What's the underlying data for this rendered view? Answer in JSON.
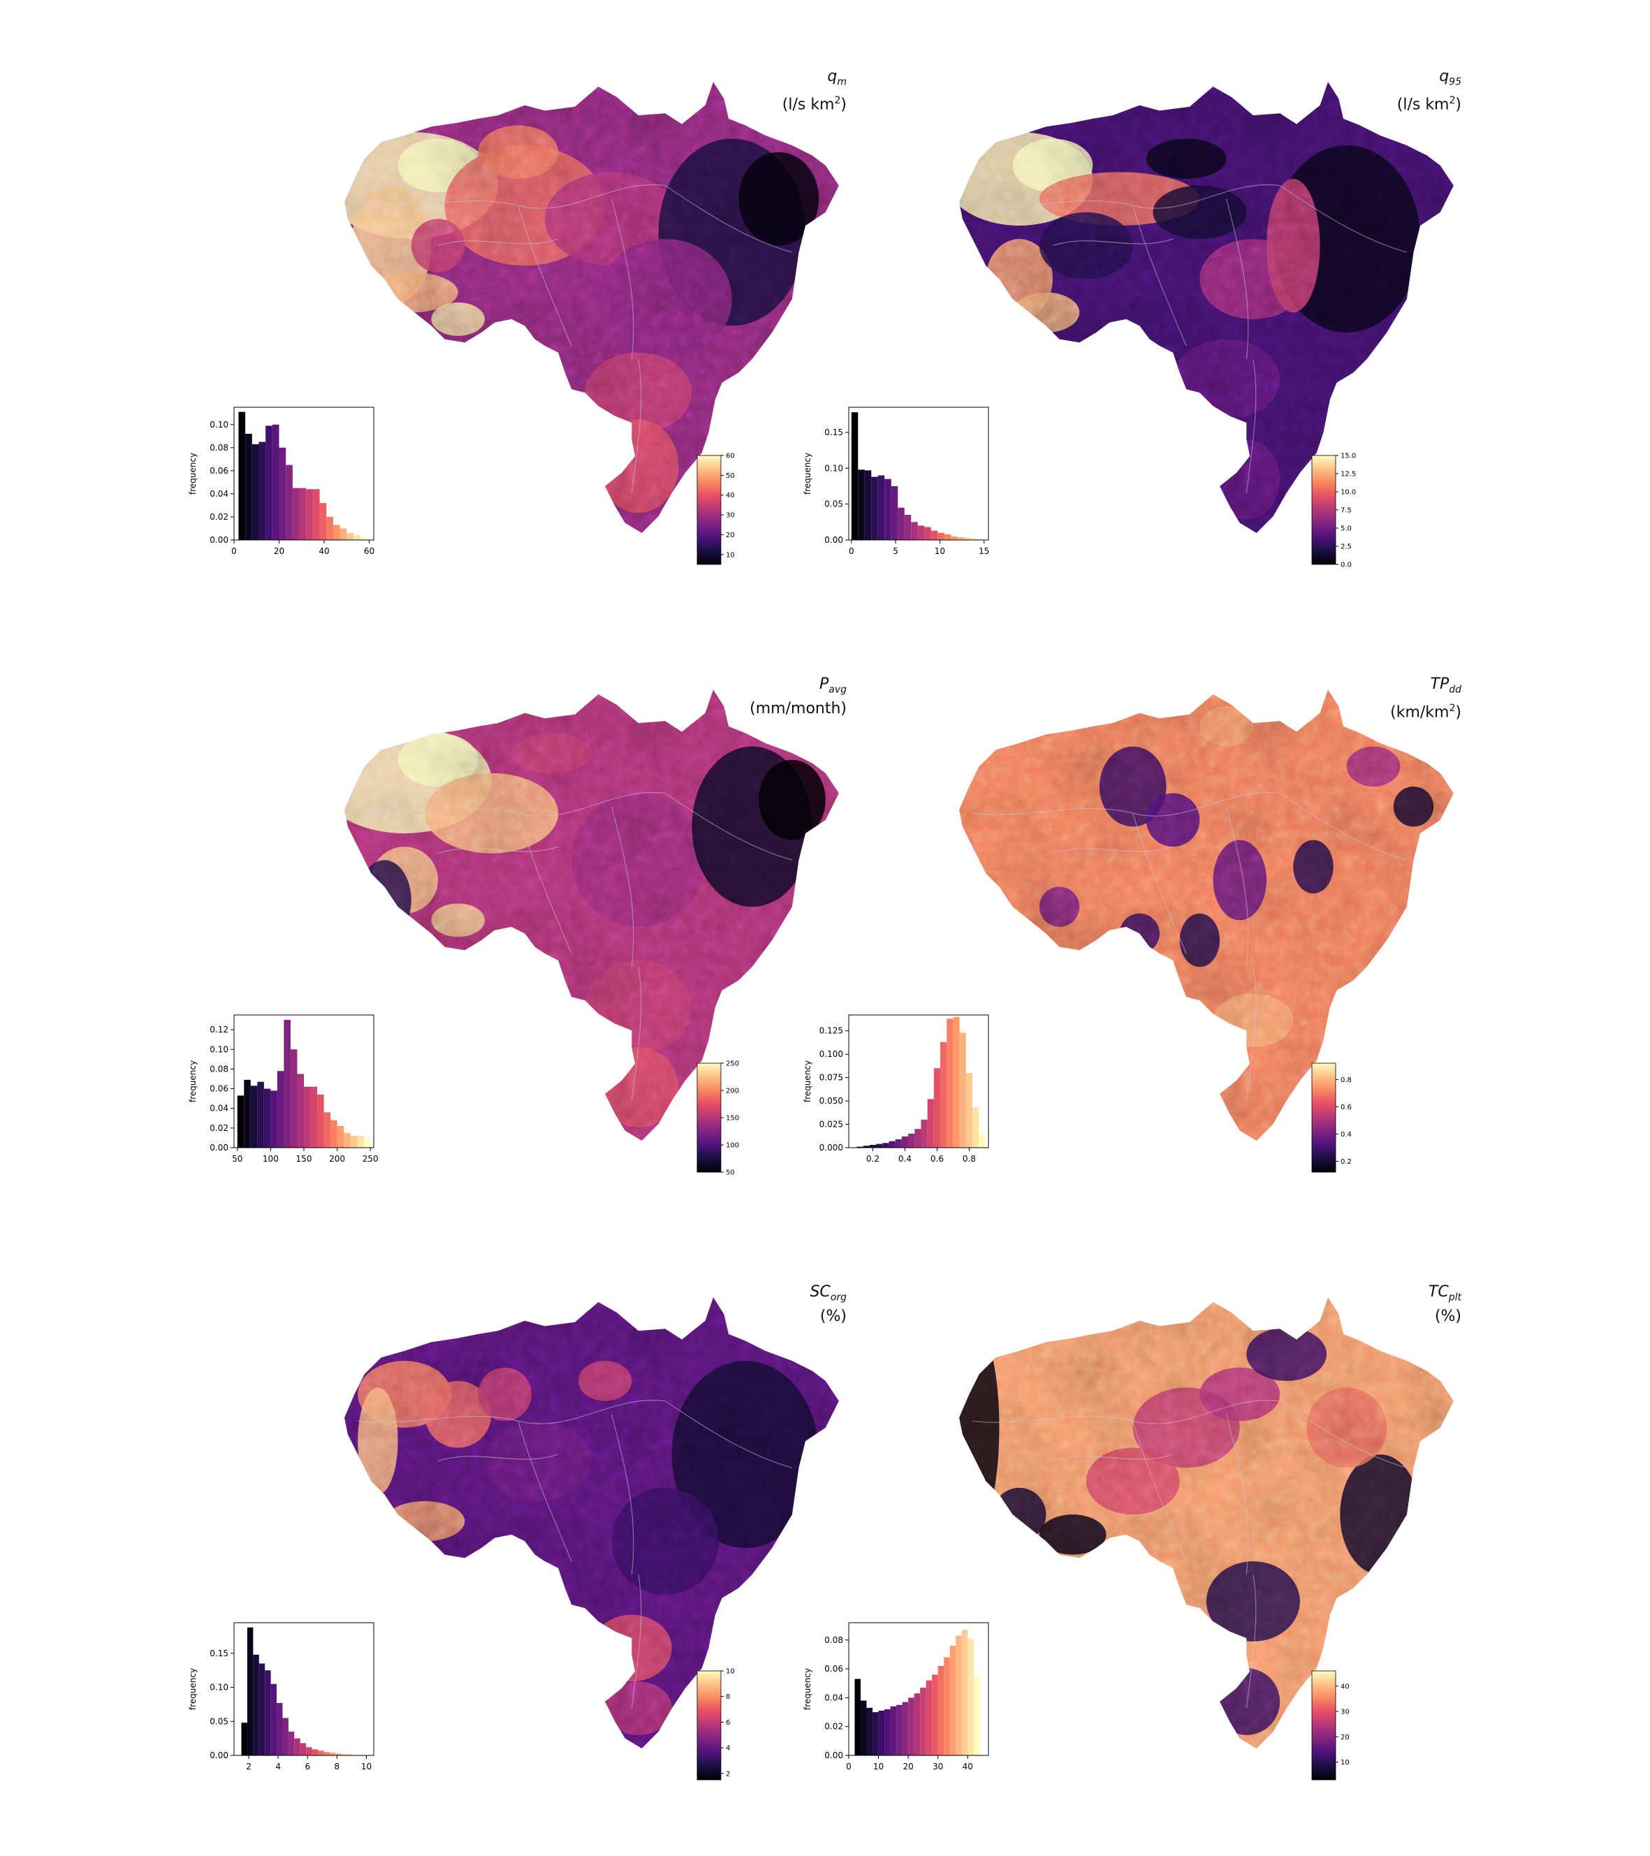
{
  "figure": {
    "panels": [
      {
        "id": "qm",
        "title_symbol": "q",
        "title_sub": "m",
        "title_unit_pre": "(l/s km",
        "title_unit_sup": "2",
        "title_unit_post": ")",
        "cbar_ticks": [
          "60",
          "50",
          "40",
          "30",
          "20",
          "10"
        ],
        "cbar_min": 5,
        "cbar_max": 60,
        "hist": {
          "ylabel": "frequency",
          "xticks": [
            {
              "v": 0,
              "l": "0"
            },
            {
              "v": 20,
              "l": "20"
            },
            {
              "v": 40,
              "l": "40"
            },
            {
              "v": 60,
              "l": "60"
            }
          ],
          "yticks": [
            {
              "v": 0,
              "l": "0.00"
            },
            {
              "v": 0.02,
              "l": "0.02"
            },
            {
              "v": 0.04,
              "l": "0.04"
            },
            {
              "v": 0.06,
              "l": "0.06"
            },
            {
              "v": 0.08,
              "l": "0.08"
            },
            {
              "v": 0.1,
              "l": "0.10"
            }
          ],
          "xlim": [
            0,
            62
          ],
          "ylim": [
            0,
            0.115
          ],
          "bins": [
            [
              2,
              5,
              0.111
            ],
            [
              5,
              8,
              0.092
            ],
            [
              8,
              11,
              0.083
            ],
            [
              11,
              14,
              0.085
            ],
            [
              14,
              17,
              0.099
            ],
            [
              17,
              20,
              0.1
            ],
            [
              20,
              23,
              0.08
            ],
            [
              23,
              26,
              0.065
            ],
            [
              26,
              29,
              0.045
            ],
            [
              29,
              32,
              0.045
            ],
            [
              32,
              35,
              0.044
            ],
            [
              35,
              38,
              0.044
            ],
            [
              38,
              41,
              0.032
            ],
            [
              41,
              44,
              0.02
            ],
            [
              44,
              47,
              0.013
            ],
            [
              47,
              50,
              0.01
            ],
            [
              50,
              53,
              0.006
            ],
            [
              53,
              56,
              0.004
            ],
            [
              56,
              59,
              0.002
            ]
          ]
        },
        "map_texture": "qm"
      },
      {
        "id": "q95",
        "title_symbol": "q",
        "title_sub": "95",
        "title_unit_pre": "(l/s km",
        "title_unit_sup": "2",
        "title_unit_post": ")",
        "cbar_ticks": [
          "15.0",
          "12.5",
          "10.0",
          "7.5",
          "5.0",
          "2.5",
          "0.0"
        ],
        "cbar_min": 0,
        "cbar_max": 15,
        "hist": {
          "ylabel": "frequency",
          "xticks": [
            {
              "v": 0,
              "l": "0"
            },
            {
              "v": 5,
              "l": "5"
            },
            {
              "v": 10,
              "l": "10"
            },
            {
              "v": 15,
              "l": "15"
            }
          ],
          "yticks": [
            {
              "v": 0,
              "l": "0.00"
            },
            {
              "v": 0.05,
              "l": "0.05"
            },
            {
              "v": 0.1,
              "l": "0.10"
            },
            {
              "v": 0.15,
              "l": "0.15"
            }
          ],
          "xlim": [
            -0.3,
            15.5
          ],
          "ylim": [
            0,
            0.185
          ],
          "bins": [
            [
              0,
              0.75,
              0.178
            ],
            [
              0.75,
              1.5,
              0.098
            ],
            [
              1.5,
              2.25,
              0.097
            ],
            [
              2.25,
              3,
              0.088
            ],
            [
              3,
              3.75,
              0.09
            ],
            [
              3.75,
              4.5,
              0.085
            ],
            [
              4.5,
              5.25,
              0.075
            ],
            [
              5.25,
              6,
              0.045
            ],
            [
              6,
              6.75,
              0.035
            ],
            [
              6.75,
              7.5,
              0.025
            ],
            [
              7.5,
              8.25,
              0.02
            ],
            [
              8.25,
              9,
              0.018
            ],
            [
              9,
              9.75,
              0.013
            ],
            [
              9.75,
              10.5,
              0.01
            ],
            [
              10.5,
              11.25,
              0.008
            ],
            [
              11.25,
              12,
              0.005
            ],
            [
              12,
              12.75,
              0.004
            ],
            [
              12.75,
              13.5,
              0.003
            ],
            [
              13.5,
              14.25,
              0.002
            ],
            [
              14.25,
              15,
              0.001
            ]
          ]
        },
        "map_texture": "q95"
      },
      {
        "id": "pavg",
        "title_symbol": "P",
        "title_sub": "avg",
        "title_unit_pre": "(mm/month)",
        "title_unit_sup": "",
        "title_unit_post": "",
        "cbar_ticks": [
          "250",
          "200",
          "150",
          "100",
          "50"
        ],
        "cbar_min": 50,
        "cbar_max": 250,
        "hist": {
          "ylabel": "frequency",
          "xticks": [
            {
              "v": 50,
              "l": "50"
            },
            {
              "v": 100,
              "l": "100"
            },
            {
              "v": 150,
              "l": "150"
            },
            {
              "v": 200,
              "l": "200"
            },
            {
              "v": 250,
              "l": "250"
            }
          ],
          "yticks": [
            {
              "v": 0,
              "l": "0.00"
            },
            {
              "v": 0.02,
              "l": "0.02"
            },
            {
              "v": 0.04,
              "l": "0.04"
            },
            {
              "v": 0.06,
              "l": "0.06"
            },
            {
              "v": 0.08,
              "l": "0.08"
            },
            {
              "v": 0.1,
              "l": "0.10"
            },
            {
              "v": 0.12,
              "l": "0.12"
            }
          ],
          "xlim": [
            45,
            255
          ],
          "ylim": [
            0,
            0.135
          ],
          "bins": [
            [
              50,
              60,
              0.053
            ],
            [
              60,
              70,
              0.069
            ],
            [
              70,
              80,
              0.063
            ],
            [
              80,
              90,
              0.067
            ],
            [
              90,
              100,
              0.06
            ],
            [
              100,
              110,
              0.058
            ],
            [
              110,
              120,
              0.078
            ],
            [
              120,
              130,
              0.13
            ],
            [
              130,
              140,
              0.1
            ],
            [
              140,
              150,
              0.075
            ],
            [
              150,
              160,
              0.062
            ],
            [
              160,
              170,
              0.062
            ],
            [
              170,
              180,
              0.054
            ],
            [
              180,
              190,
              0.036
            ],
            [
              190,
              200,
              0.028
            ],
            [
              200,
              210,
              0.022
            ],
            [
              210,
              220,
              0.015
            ],
            [
              220,
              230,
              0.012
            ],
            [
              230,
              240,
              0.012
            ],
            [
              240,
              250,
              0.01
            ]
          ]
        },
        "map_texture": "pavg"
      },
      {
        "id": "tpdd",
        "title_symbol": "TP",
        "title_sub": "dd",
        "title_unit_pre": "(km/km",
        "title_unit_sup": "2",
        "title_unit_post": ")",
        "cbar_ticks": [
          "0.8",
          "0.6",
          "0.4",
          "0.2"
        ],
        "cbar_min": 0.12,
        "cbar_max": 0.92,
        "hist": {
          "ylabel": "frequency",
          "xticks": [
            {
              "v": 0.2,
              "l": "0.2"
            },
            {
              "v": 0.4,
              "l": "0.4"
            },
            {
              "v": 0.6,
              "l": "0.6"
            },
            {
              "v": 0.8,
              "l": "0.8"
            }
          ],
          "yticks": [
            {
              "v": 0,
              "l": "0.000"
            },
            {
              "v": 0.025,
              "l": "0.025"
            },
            {
              "v": 0.05,
              "l": "0.050"
            },
            {
              "v": 0.075,
              "l": "0.075"
            },
            {
              "v": 0.1,
              "l": "0.100"
            },
            {
              "v": 0.125,
              "l": "0.125"
            }
          ],
          "xlim": [
            0.05,
            0.92
          ],
          "ylim": [
            0,
            0.142
          ],
          "bins": [
            [
              0.1,
              0.14,
              0.001
            ],
            [
              0.14,
              0.18,
              0.002
            ],
            [
              0.18,
              0.22,
              0.003
            ],
            [
              0.22,
              0.26,
              0.004
            ],
            [
              0.26,
              0.3,
              0.005
            ],
            [
              0.3,
              0.34,
              0.007
            ],
            [
              0.34,
              0.38,
              0.009
            ],
            [
              0.38,
              0.42,
              0.012
            ],
            [
              0.42,
              0.46,
              0.015
            ],
            [
              0.46,
              0.5,
              0.02
            ],
            [
              0.5,
              0.54,
              0.03
            ],
            [
              0.54,
              0.58,
              0.052
            ],
            [
              0.58,
              0.62,
              0.085
            ],
            [
              0.62,
              0.66,
              0.113
            ],
            [
              0.66,
              0.7,
              0.138
            ],
            [
              0.7,
              0.74,
              0.14
            ],
            [
              0.74,
              0.78,
              0.123
            ],
            [
              0.78,
              0.82,
              0.08
            ],
            [
              0.82,
              0.86,
              0.043
            ],
            [
              0.86,
              0.9,
              0.015
            ]
          ]
        },
        "map_texture": "tpdd"
      },
      {
        "id": "scorg",
        "title_symbol": "SC",
        "title_sub": "org",
        "title_unit_pre": "(%)",
        "title_unit_sup": "",
        "title_unit_post": "",
        "cbar_ticks": [
          "10",
          "8",
          "6",
          "4",
          "2"
        ],
        "cbar_min": 1.5,
        "cbar_max": 10,
        "hist": {
          "ylabel": "frequency",
          "xticks": [
            {
              "v": 2,
              "l": "2"
            },
            {
              "v": 4,
              "l": "4"
            },
            {
              "v": 6,
              "l": "6"
            },
            {
              "v": 8,
              "l": "8"
            },
            {
              "v": 10,
              "l": "10"
            }
          ],
          "yticks": [
            {
              "v": 0,
              "l": "0.00"
            },
            {
              "v": 0.05,
              "l": "0.05"
            },
            {
              "v": 0.1,
              "l": "0.10"
            },
            {
              "v": 0.15,
              "l": "0.15"
            }
          ],
          "xlim": [
            1.0,
            10.5
          ],
          "ylim": [
            0,
            0.195
          ],
          "bins": [
            [
              1.5,
              1.9,
              0.048
            ],
            [
              1.9,
              2.3,
              0.188
            ],
            [
              2.3,
              2.7,
              0.148
            ],
            [
              2.7,
              3.1,
              0.135
            ],
            [
              3.1,
              3.5,
              0.125
            ],
            [
              3.5,
              3.9,
              0.105
            ],
            [
              3.9,
              4.3,
              0.077
            ],
            [
              4.3,
              4.7,
              0.055
            ],
            [
              4.7,
              5.1,
              0.035
            ],
            [
              5.1,
              5.5,
              0.025
            ],
            [
              5.5,
              5.9,
              0.018
            ],
            [
              5.9,
              6.3,
              0.012
            ],
            [
              6.3,
              6.7,
              0.009
            ],
            [
              6.7,
              7.1,
              0.007
            ],
            [
              7.1,
              7.5,
              0.005
            ],
            [
              7.5,
              7.9,
              0.004
            ],
            [
              7.9,
              8.3,
              0.003
            ],
            [
              8.3,
              8.7,
              0.002
            ],
            [
              8.7,
              9.1,
              0.002
            ],
            [
              9.1,
              9.5,
              0.001
            ]
          ]
        },
        "map_texture": "scorg"
      },
      {
        "id": "tcplt",
        "title_symbol": "TC",
        "title_sub": "plt",
        "title_unit_pre": "(%)",
        "title_unit_sup": "",
        "title_unit_post": "",
        "cbar_ticks": [
          "40",
          "30",
          "20",
          "10"
        ],
        "cbar_min": 3,
        "cbar_max": 46,
        "hist": {
          "ylabel": "frequency",
          "xticks": [
            {
              "v": 0,
              "l": "0"
            },
            {
              "v": 10,
              "l": "10"
            },
            {
              "v": 20,
              "l": "20"
            },
            {
              "v": 30,
              "l": "30"
            },
            {
              "v": 40,
              "l": "40"
            }
          ],
          "yticks": [
            {
              "v": 0,
              "l": "0.00"
            },
            {
              "v": 0.02,
              "l": "0.02"
            },
            {
              "v": 0.04,
              "l": "0.04"
            },
            {
              "v": 0.06,
              "l": "0.06"
            },
            {
              "v": 0.08,
              "l": "0.08"
            }
          ],
          "xlim": [
            0,
            47
          ],
          "ylim": [
            0,
            0.092
          ],
          "bins": [
            [
              2,
              4,
              0.053
            ],
            [
              4,
              6,
              0.038
            ],
            [
              6,
              8,
              0.033
            ],
            [
              8,
              10,
              0.03
            ],
            [
              10,
              12,
              0.031
            ],
            [
              12,
              14,
              0.032
            ],
            [
              14,
              16,
              0.034
            ],
            [
              16,
              18,
              0.035
            ],
            [
              18,
              20,
              0.037
            ],
            [
              20,
              22,
              0.04
            ],
            [
              22,
              24,
              0.043
            ],
            [
              24,
              26,
              0.047
            ],
            [
              26,
              28,
              0.052
            ],
            [
              28,
              30,
              0.056
            ],
            [
              30,
              32,
              0.062
            ],
            [
              32,
              34,
              0.068
            ],
            [
              34,
              36,
              0.076
            ],
            [
              36,
              38,
              0.083
            ],
            [
              38,
              40,
              0.087
            ],
            [
              40,
              42,
              0.081
            ],
            [
              42,
              44,
              0.055
            ]
          ]
        },
        "map_texture": "tcplt"
      }
    ]
  }
}
